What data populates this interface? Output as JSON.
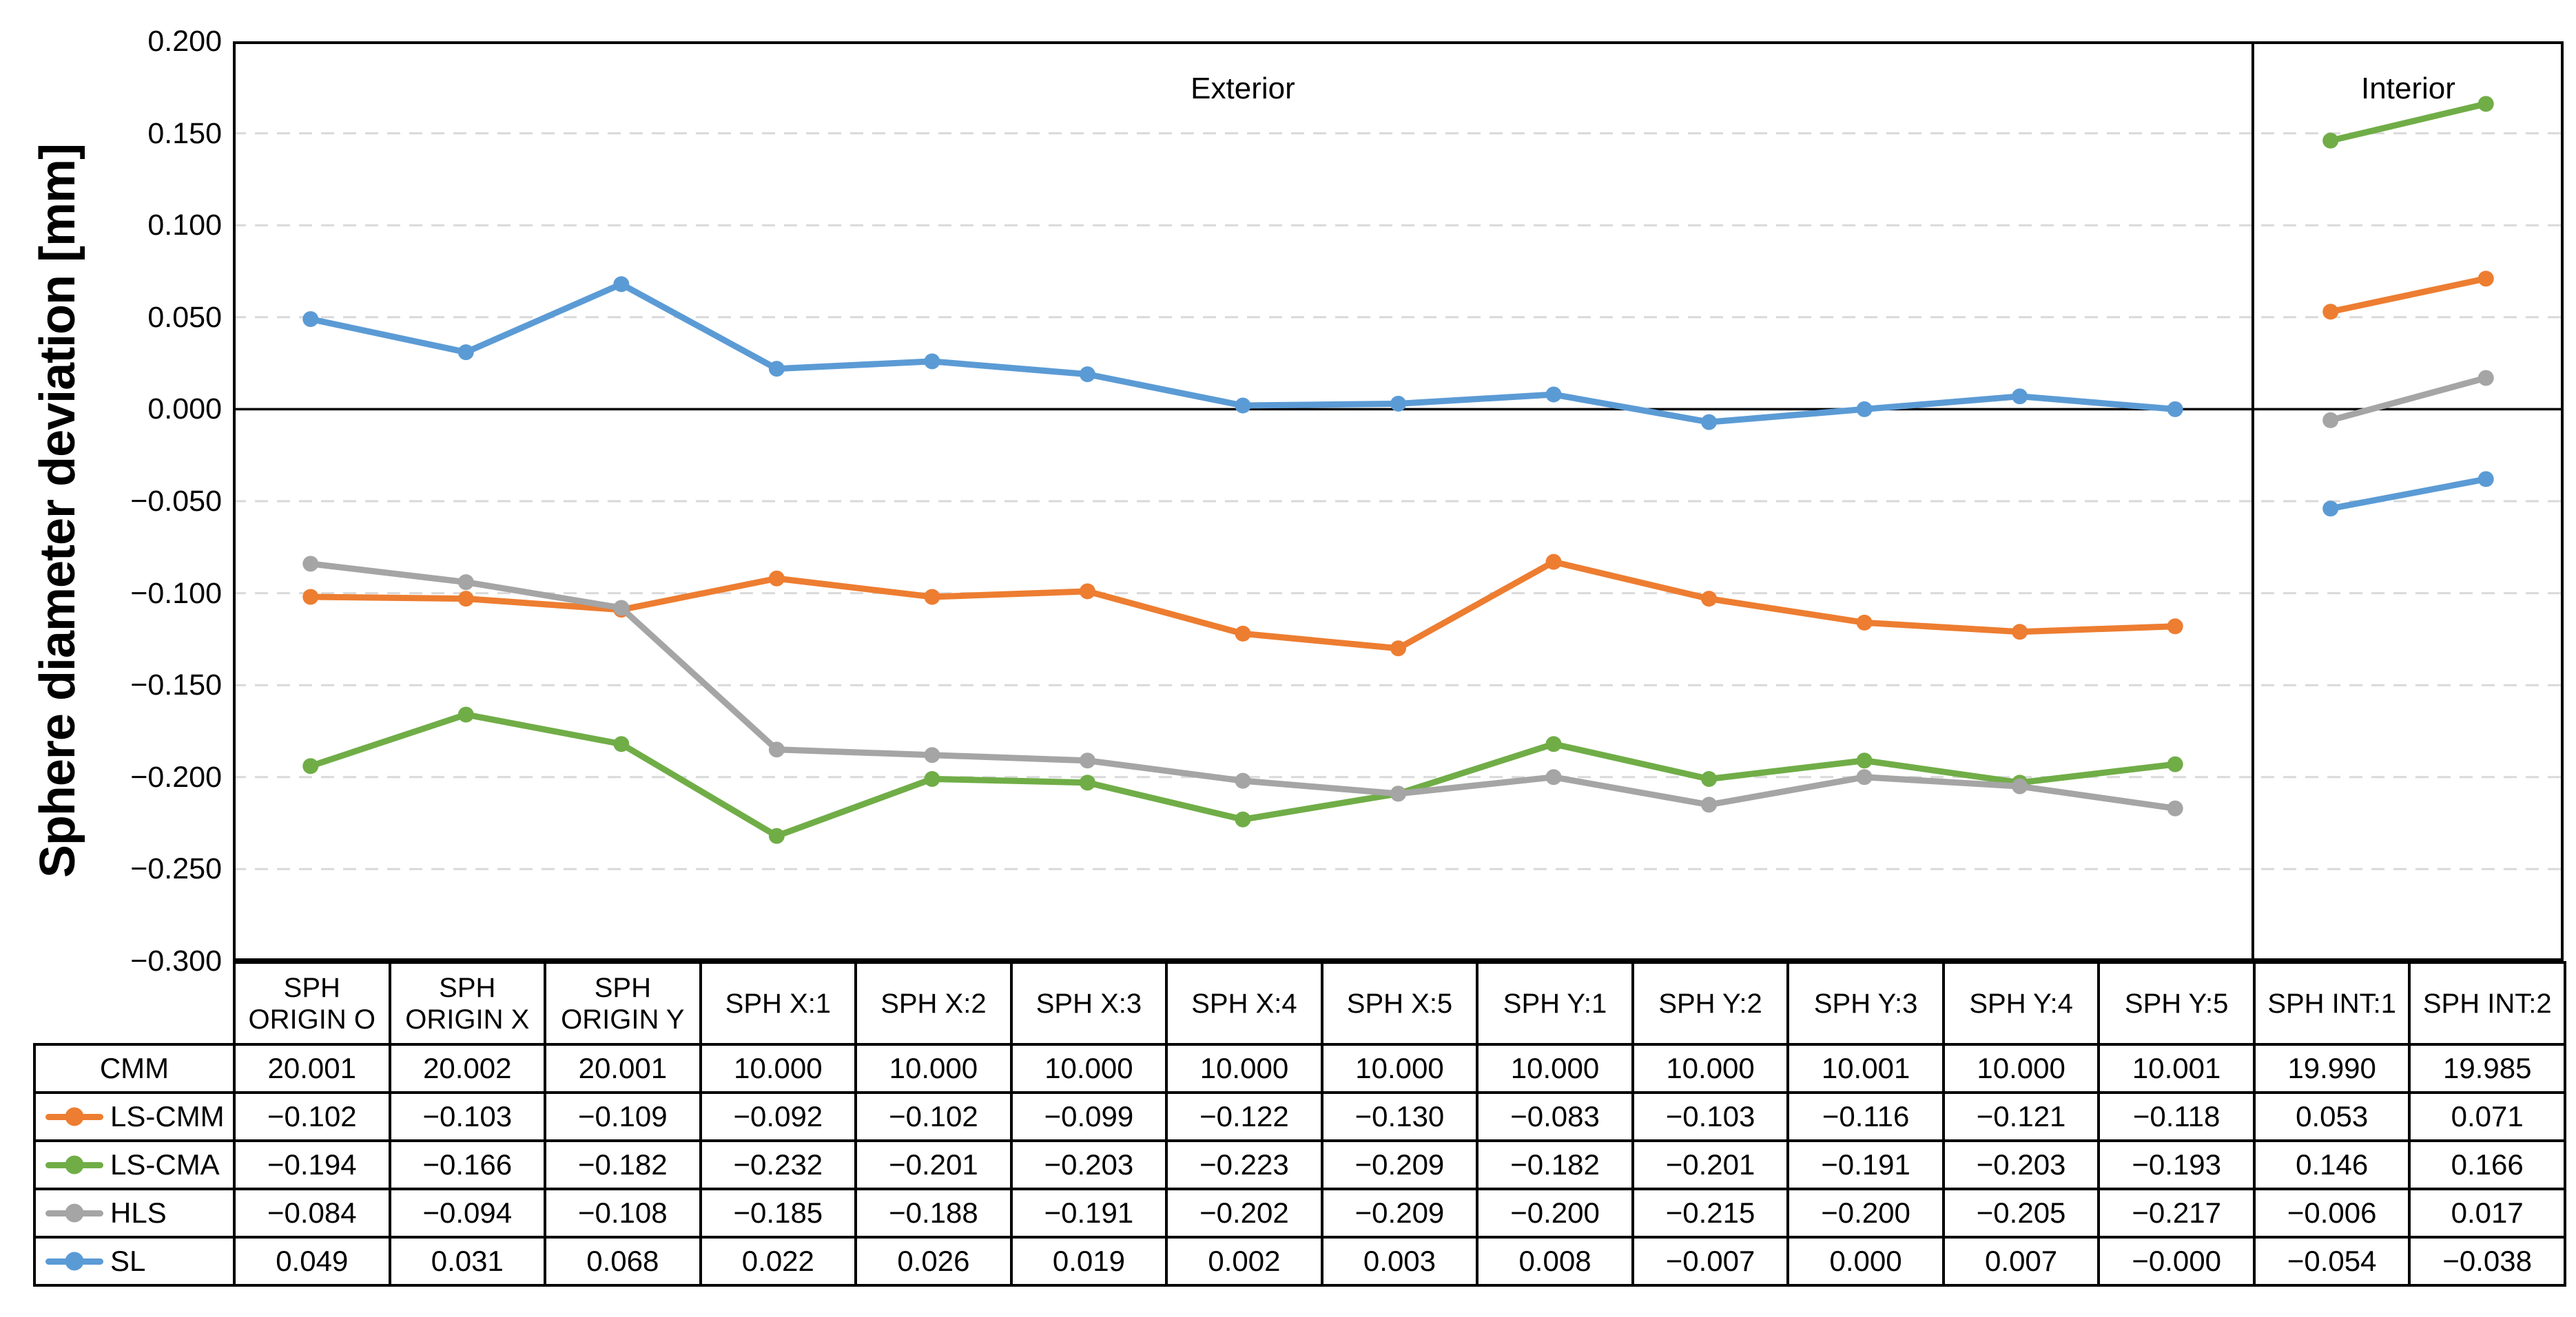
{
  "chart_data": {
    "type": "line",
    "title": "",
    "ylabel": "Sphere diameter deviation [mm]",
    "xlabel": "",
    "ylim": [
      -0.3,
      0.2
    ],
    "y_tick_step": 0.05,
    "y_tick_labels": [
      "0.200",
      "0.150",
      "0.100",
      "0.050",
      "0.000",
      "−0.050",
      "−0.100",
      "−0.150",
      "−0.200",
      "−0.250",
      "−0.300"
    ],
    "grid": "horizontal-dashed",
    "legend_position": "table-left-column",
    "regions": [
      {
        "label": "Exterior",
        "from_col": 0,
        "to_col": 13
      },
      {
        "label": "Interior",
        "from_col": 13,
        "to_col": 15
      }
    ],
    "categories": [
      "SPH ORIGIN O",
      "SPH ORIGIN X",
      "SPH ORIGIN Y",
      "SPH X:1",
      "SPH X:2",
      "SPH X:3",
      "SPH X:4",
      "SPH X:5",
      "SPH Y:1",
      "SPH Y:2",
      "SPH Y:3",
      "SPH Y:4",
      "SPH Y:5",
      "SPH INT:1",
      "SPH INT:2"
    ],
    "line_segments": [
      [
        0,
        12
      ],
      [
        13,
        14
      ]
    ],
    "series": [
      {
        "name": "CMM",
        "color": null,
        "plotted": false,
        "values": [
          20.001,
          20.002,
          20.001,
          10.0,
          10.0,
          10.0,
          10.0,
          10.0,
          10.0,
          10.0,
          10.001,
          10.0,
          10.001,
          19.99,
          19.985
        ],
        "display": [
          "20.001",
          "20.002",
          "20.001",
          "10.000",
          "10.000",
          "10.000",
          "10.000",
          "10.000",
          "10.000",
          "10.000",
          "10.001",
          "10.000",
          "10.001",
          "19.990",
          "19.985"
        ]
      },
      {
        "name": "LS-CMM",
        "color": "#ED7D31",
        "plotted": true,
        "values": [
          -0.102,
          -0.103,
          -0.109,
          -0.092,
          -0.102,
          -0.099,
          -0.122,
          -0.13,
          -0.083,
          -0.103,
          -0.116,
          -0.121,
          -0.118,
          0.053,
          0.071
        ],
        "display": [
          "−0.102",
          "−0.103",
          "−0.109",
          "−0.092",
          "−0.102",
          "−0.099",
          "−0.122",
          "−0.130",
          "−0.083",
          "−0.103",
          "−0.116",
          "−0.121",
          "−0.118",
          "0.053",
          "0.071"
        ]
      },
      {
        "name": "LS-CMA",
        "color": "#70AD47",
        "plotted": true,
        "values": [
          -0.194,
          -0.166,
          -0.182,
          -0.232,
          -0.201,
          -0.203,
          -0.223,
          -0.209,
          -0.182,
          -0.201,
          -0.191,
          -0.203,
          -0.193,
          0.146,
          0.166
        ],
        "display": [
          "−0.194",
          "−0.166",
          "−0.182",
          "−0.232",
          "−0.201",
          "−0.203",
          "−0.223",
          "−0.209",
          "−0.182",
          "−0.201",
          "−0.191",
          "−0.203",
          "−0.193",
          "0.146",
          "0.166"
        ]
      },
      {
        "name": "HLS",
        "color": "#A5A5A5",
        "plotted": true,
        "values": [
          -0.084,
          -0.094,
          -0.108,
          -0.185,
          -0.188,
          -0.191,
          -0.202,
          -0.209,
          -0.2,
          -0.215,
          -0.2,
          -0.205,
          -0.217,
          -0.006,
          0.017
        ],
        "display": [
          "−0.084",
          "−0.094",
          "−0.108",
          "−0.185",
          "−0.188",
          "−0.191",
          "−0.202",
          "−0.209",
          "−0.200",
          "−0.215",
          "−0.200",
          "−0.205",
          "−0.217",
          "−0.006",
          "0.017"
        ]
      },
      {
        "name": "SL",
        "color": "#5B9BD5",
        "plotted": true,
        "values": [
          0.049,
          0.031,
          0.068,
          0.022,
          0.026,
          0.019,
          0.002,
          0.003,
          0.008,
          -0.007,
          0.0,
          0.007,
          0.0,
          -0.054,
          -0.038
        ],
        "display": [
          "0.049",
          "0.031",
          "0.068",
          "0.022",
          "0.026",
          "0.019",
          "0.002",
          "0.003",
          "0.008",
          "−0.007",
          "0.000",
          "0.007",
          "−0.000",
          "−0.054",
          "−0.038"
        ]
      }
    ],
    "colors": {
      "gridline": "#D9D9D9",
      "zero_line": "#000000",
      "border": "#000000",
      "background": "#FFFFFF"
    }
  }
}
